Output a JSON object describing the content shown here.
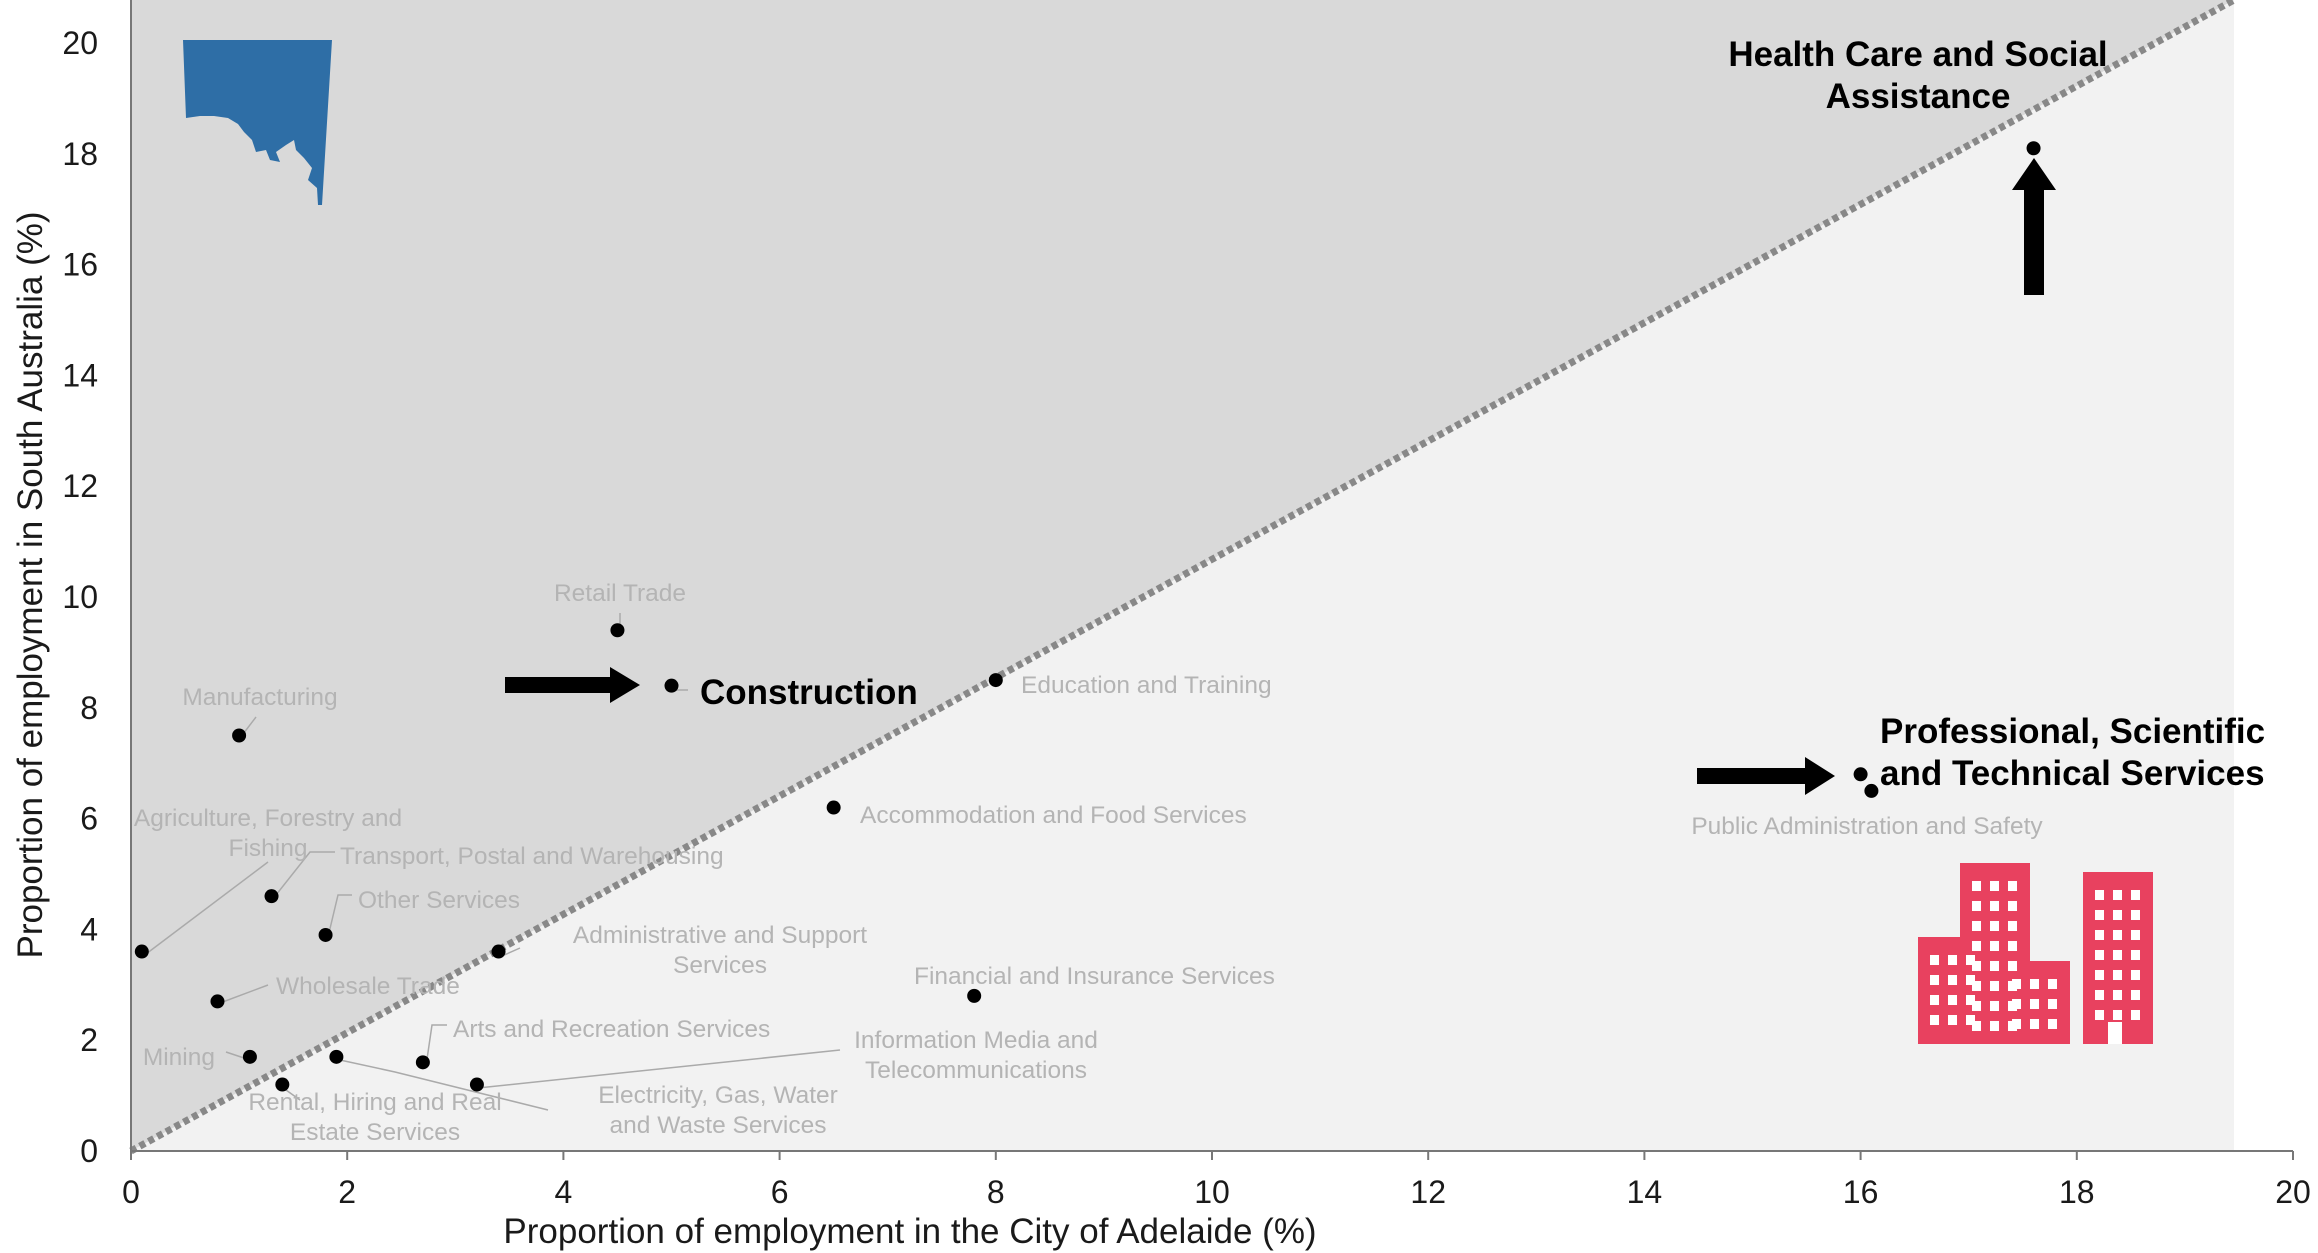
{
  "chart_data": {
    "type": "scatter",
    "title": "",
    "xlabel": "Proportion of employment in the City of Adelaide (%)",
    "ylabel": "Proportion of employment in South Australia (%)",
    "xlim": [
      0,
      20
    ],
    "ylim": [
      0,
      20
    ],
    "xticks": [
      "0",
      "2",
      "4",
      "6",
      "8",
      "10",
      "12",
      "14",
      "16",
      "18",
      "20"
    ],
    "yticks": [
      "0",
      "2",
      "4",
      "6",
      "8",
      "10",
      "12",
      "14",
      "16",
      "18",
      "20"
    ],
    "grid": false,
    "reference_line": "y = x (dotted diagonal); region above shaded dark grey, region below shaded light grey",
    "colors": {
      "upper_region": "#d9d9d9",
      "lower_region": "#f2f2f2",
      "diagonal": "#888888",
      "points": "#000000",
      "label_muted": "#b4b4b4",
      "sa_map": "#2e6ea6",
      "buildings": "#e8415f"
    },
    "icons": [
      "south-australia-map-icon",
      "city-buildings-icon"
    ],
    "points": [
      {
        "label": [
          "Health Care and Social",
          "Assistance"
        ],
        "x": 17.6,
        "y": 18.1,
        "highlight": true
      },
      {
        "label": [
          "Retail Trade"
        ],
        "x": 4.5,
        "y": 9.4
      },
      {
        "label": [
          "Construction"
        ],
        "x": 5.0,
        "y": 8.4,
        "highlight": true
      },
      {
        "label": [
          "Education and Training"
        ],
        "x": 8.0,
        "y": 8.5
      },
      {
        "label": [
          "Manufacturing"
        ],
        "x": 1.0,
        "y": 7.5
      },
      {
        "label": [
          "Professional, Scientific",
          "and Technical Services"
        ],
        "x": 16.0,
        "y": 6.8,
        "highlight": true
      },
      {
        "label": [
          "Public Administration and Safety"
        ],
        "x": 16.1,
        "y": 6.5
      },
      {
        "label": [
          "Accommodation and Food Services"
        ],
        "x": 6.5,
        "y": 6.2
      },
      {
        "label": [
          "Transport, Postal and Warehousing"
        ],
        "x": 1.3,
        "y": 4.6
      },
      {
        "label": [
          "Other Services"
        ],
        "x": 1.8,
        "y": 3.9
      },
      {
        "label": [
          "Agriculture, Forestry and",
          "Fishing"
        ],
        "x": 0.1,
        "y": 3.6
      },
      {
        "label": [
          "Administrative and Support",
          "Services"
        ],
        "x": 3.4,
        "y": 3.6
      },
      {
        "label": [
          "Financial and Insurance Services"
        ],
        "x": 7.8,
        "y": 2.8
      },
      {
        "label": [
          "Wholesale Trade"
        ],
        "x": 0.8,
        "y": 2.7
      },
      {
        "label": [
          "Mining"
        ],
        "x": 1.1,
        "y": 1.7
      },
      {
        "label": [
          "Arts and Recreation Services"
        ],
        "x": 2.7,
        "y": 1.6
      },
      {
        "label": [
          "Information Media and",
          "Telecommunications"
        ],
        "x": 3.2,
        "y": 1.2
      },
      {
        "label": [
          "Rental, Hiring and Real",
          "Estate Services"
        ],
        "x": 1.4,
        "y": 1.2
      },
      {
        "label": [
          "Electricity, Gas, Water",
          "and Waste Services"
        ],
        "x": 1.9,
        "y": 1.7
      }
    ]
  }
}
